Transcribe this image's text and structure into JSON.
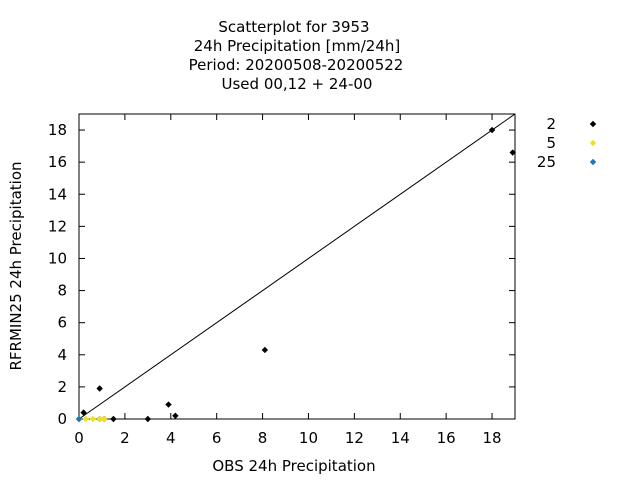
{
  "chart_data": {
    "type": "scatter",
    "title_lines": [
      "Scatterplot for     3953",
      "24h Precipitation [mm/24h]",
      "Period: 20200508-20200522",
      "Used  00,12  + 24-00"
    ],
    "xlabel": "OBS 24h Precipitation",
    "ylabel": "RFRMIN25 24h Precipitation",
    "xlim": [
      0,
      19
    ],
    "ylim": [
      0,
      19
    ],
    "xticks": [
      "0",
      "2",
      "4",
      "6",
      "8",
      "10",
      "12",
      "14",
      "16",
      "18"
    ],
    "yticks": [
      "0",
      "2",
      "4",
      "6",
      "8",
      "10",
      "12",
      "14",
      "16",
      "18"
    ],
    "reference_line": "y = x",
    "grid": false,
    "legend_position": "top-right",
    "series": [
      {
        "name": "2",
        "color": "#000000",
        "marker": "diamond",
        "points": [
          [
            0.0,
            0.0
          ],
          [
            0.2,
            0.4
          ],
          [
            0.9,
            1.9
          ],
          [
            0.9,
            0.0
          ],
          [
            1.1,
            0.0
          ],
          [
            1.5,
            0.0
          ],
          [
            3.0,
            0.0
          ],
          [
            3.9,
            0.9
          ],
          [
            4.2,
            0.2
          ],
          [
            8.1,
            4.3
          ],
          [
            18.0,
            18.0
          ],
          [
            18.9,
            16.6
          ]
        ]
      },
      {
        "name": "5",
        "color": "#f0e020",
        "marker": "diamond",
        "points": [
          [
            0.0,
            0.0
          ],
          [
            0.3,
            0.0
          ],
          [
            0.6,
            0.0
          ],
          [
            0.9,
            0.0
          ],
          [
            1.1,
            0.0
          ]
        ]
      },
      {
        "name": "25",
        "color": "#1f77b4",
        "marker": "diamond",
        "points": [
          [
            0.0,
            0.0
          ]
        ]
      }
    ]
  }
}
